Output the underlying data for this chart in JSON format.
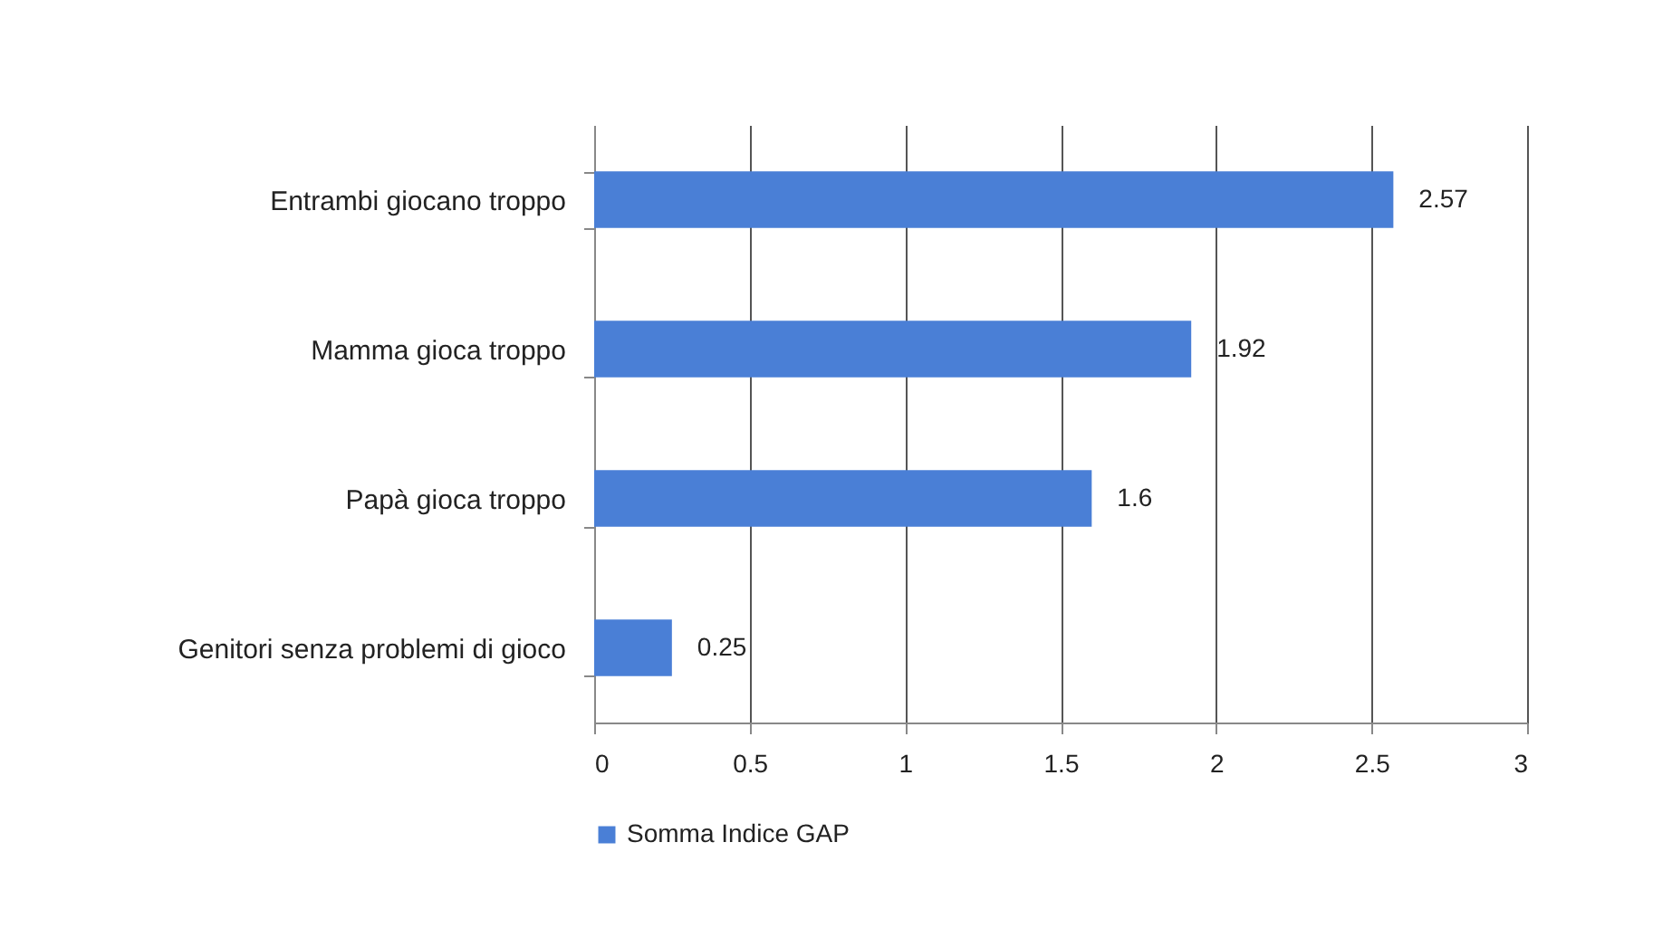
{
  "chart_data": {
    "type": "bar",
    "orientation": "horizontal",
    "categories": [
      "Entrambi giocano troppo",
      "Mamma gioca troppo",
      "Papà gioca troppo",
      "Genitori senza problemi di gioco"
    ],
    "series": [
      {
        "name": "Somma Indice GAP",
        "color": "#4a7fd6",
        "values": [
          2.57,
          1.92,
          1.6,
          0.25
        ]
      }
    ],
    "xlim": [
      0,
      3
    ],
    "xticks": [
      0,
      0.5,
      1,
      1.5,
      2,
      2.5,
      3
    ],
    "grid": "x",
    "legend": "bottom",
    "data_labels": true
  }
}
